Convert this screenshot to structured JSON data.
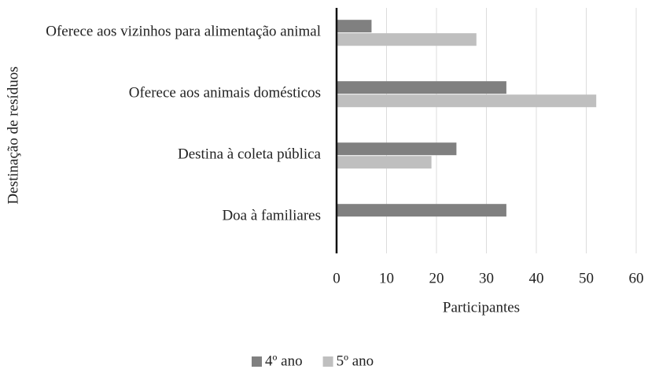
{
  "chart_data": {
    "type": "barh",
    "x_label": "Participantes",
    "y_label": "Destinação de resíduos",
    "categories": [
      "Oferece aos vizinhos para alimentação animal",
      "Oferece aos animais domésticos",
      "Destina à coleta pública",
      "Doa à familiares"
    ],
    "series": [
      {
        "name": "4º ano",
        "color": "#808080",
        "values": [
          7,
          34,
          24,
          34
        ]
      },
      {
        "name": "5º ano",
        "color": "#bfbfbf",
        "values": [
          28,
          52,
          19,
          null
        ]
      }
    ],
    "xlim": [
      0,
      60
    ],
    "xticks": [
      0,
      10,
      20,
      30,
      40,
      50,
      60
    ],
    "grid": true,
    "legend": "bottom"
  }
}
